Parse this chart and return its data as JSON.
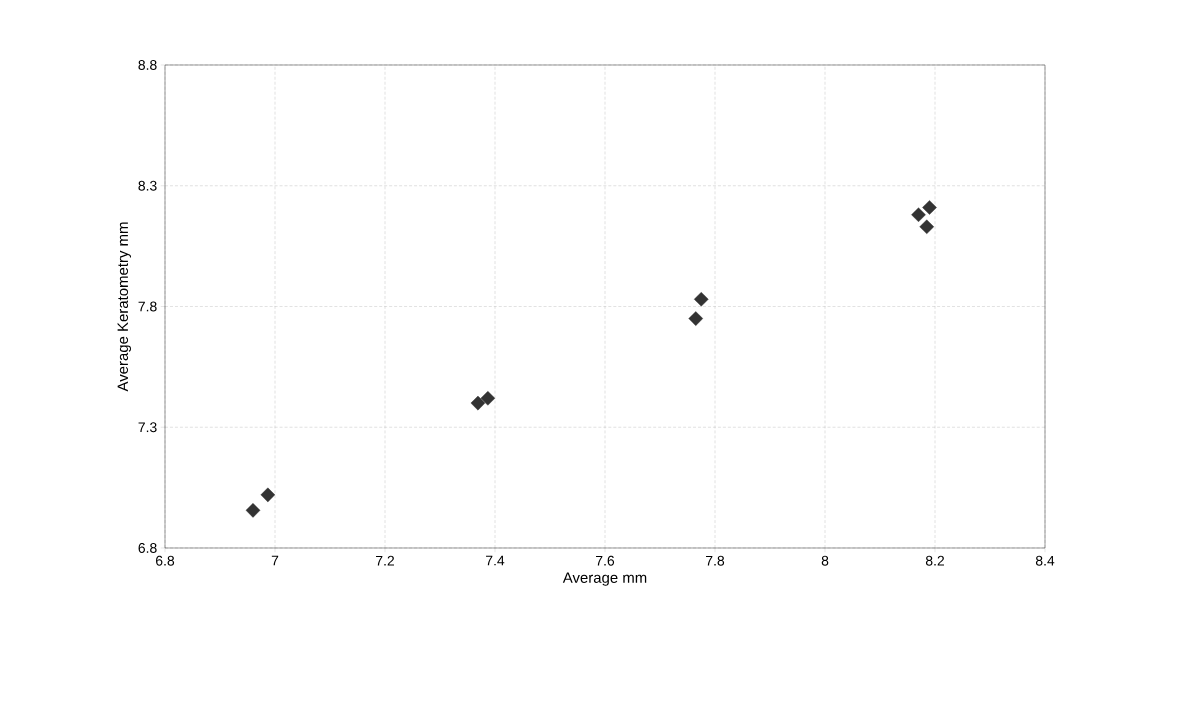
{
  "chart_data": {
    "type": "scatter",
    "xlabel": "Average mm",
    "ylabel": "Average Keratometry mm",
    "x": [
      6.96,
      6.987,
      7.369,
      7.387,
      7.765,
      7.775,
      8.17,
      8.19,
      8.185
    ],
    "series": [
      {
        "color": "#333333",
        "values": [
          6.956,
          7.02,
          7.4,
          7.42,
          7.75,
          7.83,
          8.18,
          8.21,
          8.13
        ]
      }
    ],
    "xlim": [
      6.8,
      8.4
    ],
    "xticks": [
      6.8,
      7,
      7.2,
      7.4,
      7.6,
      7.8,
      8,
      8.2,
      8.4
    ],
    "ylim": [
      6.8,
      8.8
    ],
    "yticks": [
      6.8,
      7.3,
      7.8,
      8.3,
      8.8
    ],
    "grid": true,
    "marker": "diamond"
  }
}
